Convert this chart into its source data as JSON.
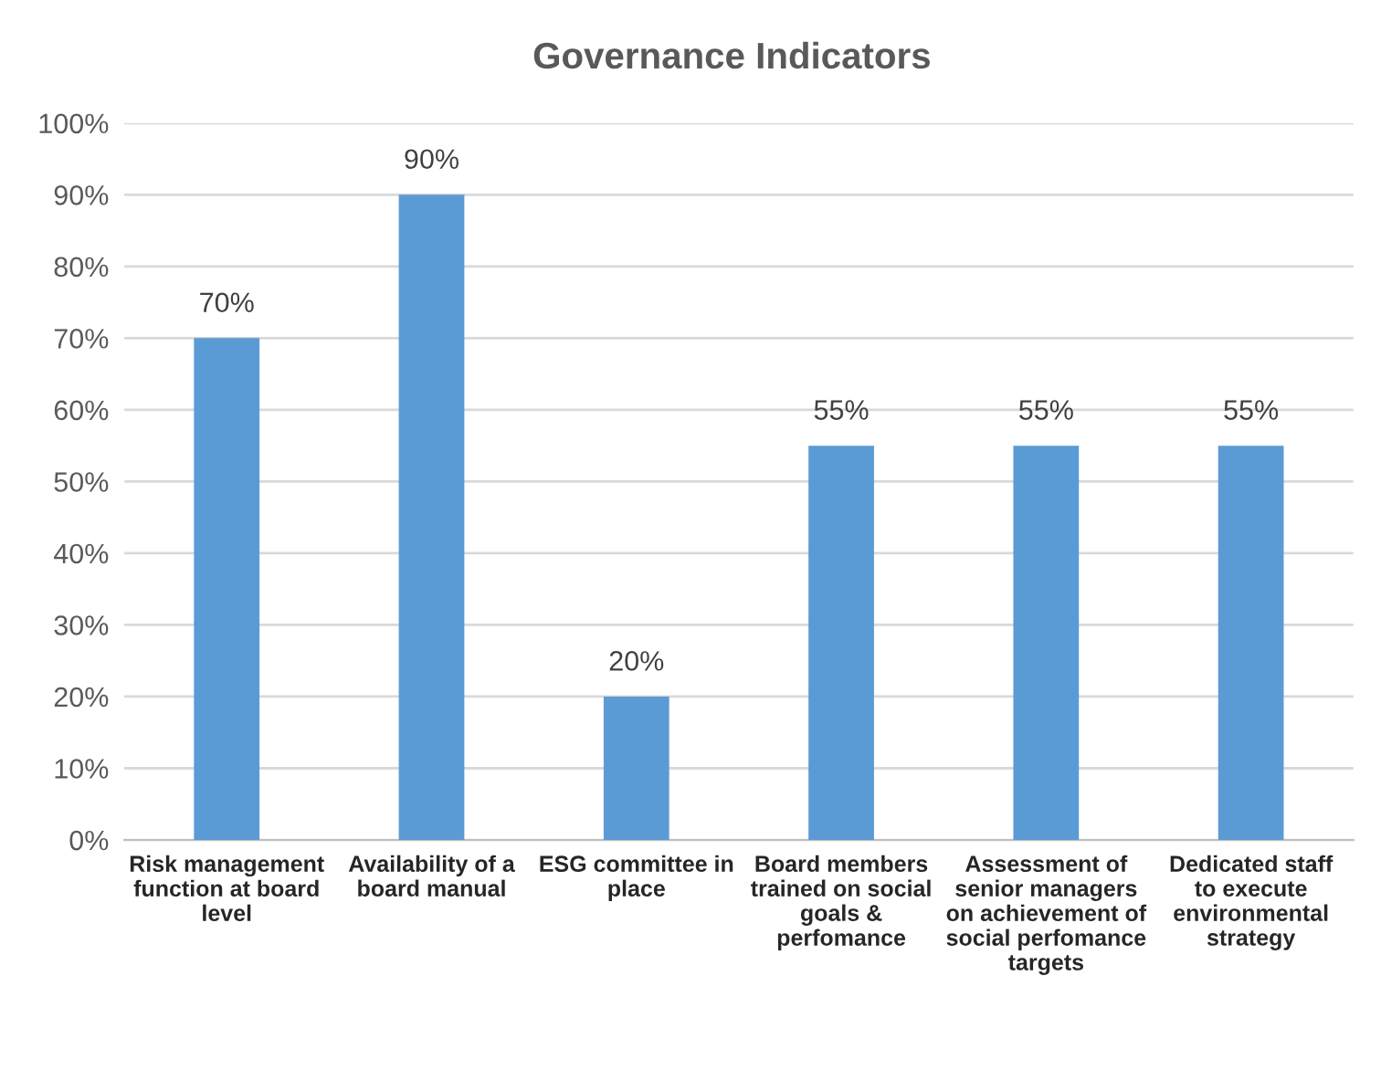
{
  "chart_data": {
    "type": "bar",
    "title": "Governance Indicators",
    "categories": [
      "Risk management function at board level",
      "Availability of a board manual",
      "ESG committee in place",
      "Board members trained on social goals & perfomance",
      "Assessment of senior managers on achievement of social perfomance targets",
      "Dedicated staff to execute environmental strategy"
    ],
    "values": [
      70,
      90,
      20,
      55,
      55,
      55
    ],
    "value_labels": [
      "70%",
      "90%",
      "20%",
      "55%",
      "55%",
      "55%"
    ],
    "color": "#5b9bd5",
    "ylim": [
      0,
      100
    ],
    "yticks": [
      {
        "value": 0,
        "label": "0%"
      },
      {
        "value": 10,
        "label": "10%"
      },
      {
        "value": 20,
        "label": "20%"
      },
      {
        "value": 30,
        "label": "30%"
      },
      {
        "value": 40,
        "label": "40%"
      },
      {
        "value": 50,
        "label": "50%"
      },
      {
        "value": 60,
        "label": "60%"
      },
      {
        "value": 70,
        "label": "70%"
      },
      {
        "value": 80,
        "label": "80%"
      },
      {
        "value": 90,
        "label": "90%"
      },
      {
        "value": 100,
        "label": "100%"
      }
    ],
    "grid": "y"
  }
}
